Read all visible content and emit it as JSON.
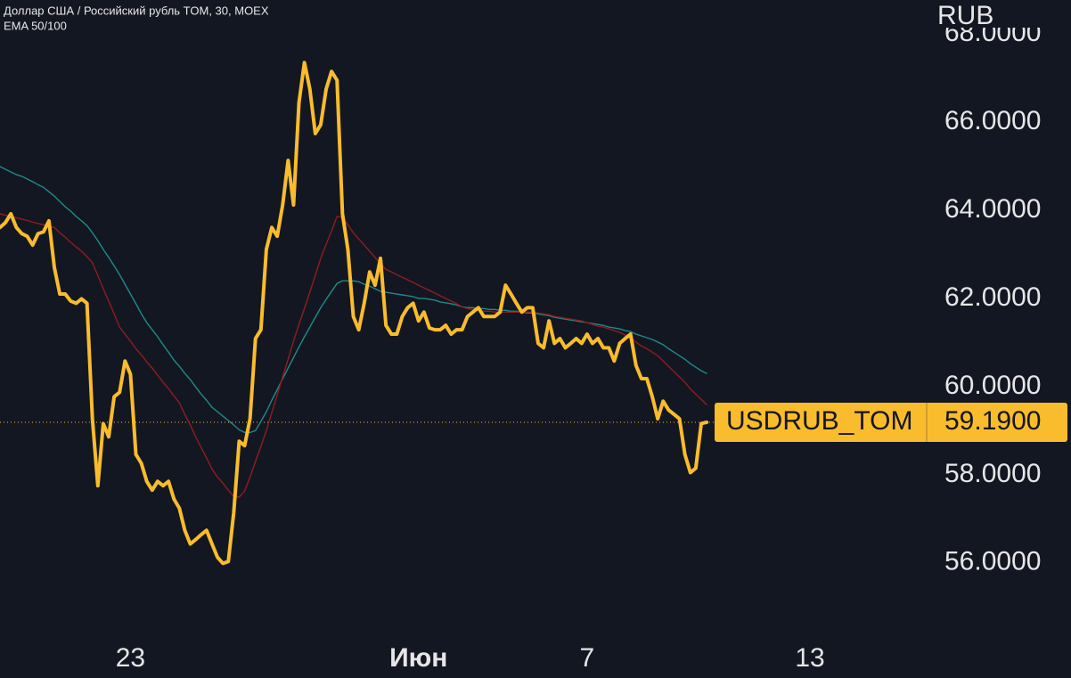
{
  "chart_data": {
    "type": "line",
    "title": "Доллар США / Российский рубль TOM, 30, MOEX",
    "subtitle": "EMA 50/100",
    "y_axis_label": "RUB",
    "categories": [
      null,
      null,
      null,
      null,
      null,
      null,
      null,
      null,
      null,
      null,
      null,
      null,
      null,
      null,
      null,
      null,
      null,
      null,
      null,
      null,
      null,
      null,
      null,
      null,
      "23",
      null,
      null,
      null,
      null,
      null,
      null,
      null,
      null,
      null,
      null,
      null,
      null,
      null,
      null,
      null,
      null,
      null,
      null,
      null,
      null,
      null,
      null,
      null,
      null,
      null,
      null,
      null,
      null,
      null,
      null,
      null,
      null,
      null,
      null,
      null,
      null,
      null,
      null,
      null,
      null,
      null,
      null,
      null,
      null,
      null,
      null,
      null,
      null,
      null,
      null,
      null,
      null,
      "Июн",
      null,
      null,
      null,
      null,
      null,
      null,
      null,
      null,
      null,
      null,
      null,
      null,
      null,
      null,
      null,
      null,
      null,
      null,
      null,
      null,
      null,
      null,
      null,
      null,
      null,
      null,
      null,
      null,
      null,
      null,
      "7",
      null,
      null,
      null,
      null,
      null,
      null,
      null,
      null,
      null,
      null,
      null,
      null,
      null,
      null,
      null,
      null,
      null,
      null,
      null,
      null,
      null,
      null,
      null,
      null,
      null,
      null,
      null,
      null,
      null,
      null,
      null,
      null,
      null,
      null,
      null,
      null,
      null,
      null,
      null,
      null,
      "13"
    ],
    "series": [
      {
        "color": "#1f8a8a",
        "values": [
          64.99,
          64.93,
          64.87,
          64.81,
          64.77,
          64.71,
          64.65,
          64.58,
          64.52,
          64.42,
          64.32,
          64.2,
          64.08,
          63.98,
          63.86,
          63.76,
          63.65,
          63.49,
          63.31,
          63.11,
          62.93,
          62.74,
          62.54,
          62.32,
          62.1,
          61.88,
          61.65,
          61.45,
          61.29,
          61.13,
          60.95,
          60.78,
          60.6,
          60.46,
          60.3,
          60.16,
          59.99,
          59.83,
          59.69,
          59.53,
          59.43,
          59.33,
          59.23,
          59.13,
          59.02,
          58.96,
          58.96,
          59.0,
          59.21,
          59.43,
          59.69,
          59.93,
          60.18,
          60.42,
          60.66,
          60.9,
          61.13,
          61.35,
          61.57,
          61.79,
          61.98,
          62.16,
          62.34,
          62.4,
          62.4,
          62.4,
          62.38,
          62.32,
          62.28,
          62.22,
          62.16,
          62.14,
          62.12,
          62.1,
          62.08,
          62.06,
          62.04,
          62.0,
          62.0,
          61.98,
          61.96,
          61.92,
          61.9,
          61.88,
          61.85,
          61.81,
          61.79,
          61.79,
          61.77,
          61.77,
          61.75,
          61.75,
          61.73,
          61.73,
          61.71,
          61.71,
          61.69,
          61.67,
          61.67,
          61.65,
          61.63,
          61.61,
          61.57,
          61.55,
          61.53,
          61.51,
          61.49,
          61.47,
          61.45,
          61.43,
          61.41,
          61.39,
          61.35,
          61.33,
          61.31,
          61.27,
          61.25,
          61.19,
          61.15,
          61.11,
          61.07,
          61.01,
          60.95,
          60.86,
          60.78,
          60.7,
          60.62,
          60.52,
          60.44,
          60.36,
          60.3,
          null,
          null,
          null,
          null,
          null,
          null,
          null,
          null,
          null,
          null,
          null,
          null,
          null,
          null,
          null,
          null,
          null,
          null,
          null
        ]
      },
      {
        "color": "#8f1d1d",
        "values": [
          63.92,
          63.89,
          63.86,
          63.83,
          63.8,
          63.77,
          63.73,
          63.7,
          63.67,
          63.64,
          63.61,
          63.49,
          63.39,
          63.27,
          63.17,
          63.07,
          62.95,
          62.81,
          62.52,
          62.22,
          61.94,
          61.65,
          61.35,
          61.19,
          61.03,
          60.86,
          60.72,
          60.56,
          60.42,
          60.26,
          60.1,
          59.95,
          59.79,
          59.63,
          59.37,
          59.13,
          58.86,
          58.62,
          58.38,
          58.13,
          57.95,
          57.81,
          57.65,
          57.51,
          57.49,
          57.63,
          57.95,
          58.3,
          58.64,
          59.0,
          59.41,
          59.81,
          60.22,
          60.62,
          61.03,
          61.41,
          61.77,
          62.14,
          62.52,
          62.91,
          63.23,
          63.53,
          63.86,
          63.84,
          63.67,
          63.49,
          63.35,
          63.21,
          63.07,
          62.93,
          62.79,
          62.66,
          62.6,
          62.54,
          62.48,
          62.42,
          62.36,
          62.3,
          62.24,
          62.18,
          62.12,
          62.06,
          62.0,
          61.94,
          61.88,
          61.81,
          61.77,
          61.75,
          61.73,
          61.71,
          61.71,
          61.69,
          61.69,
          61.69,
          61.69,
          61.69,
          61.69,
          61.69,
          61.69,
          61.67,
          61.65,
          61.63,
          61.59,
          61.57,
          61.55,
          61.53,
          61.51,
          61.49,
          61.45,
          61.41,
          61.37,
          61.35,
          61.31,
          61.27,
          61.23,
          61.17,
          61.09,
          61.01,
          60.92,
          60.86,
          60.78,
          60.7,
          60.58,
          60.46,
          60.34,
          60.22,
          60.1,
          59.95,
          59.83,
          59.71,
          59.59,
          null,
          null,
          null,
          null,
          null,
          null,
          null,
          null,
          null,
          null,
          null,
          null,
          null,
          null,
          null,
          null,
          null,
          null,
          null
        ]
      },
      {
        "name": "USDRUB_TOM",
        "color": "#f9bc2c",
        "values": [
          63.61,
          63.72,
          63.92,
          63.61,
          63.47,
          63.41,
          63.21,
          63.47,
          63.51,
          63.76,
          62.7,
          62.1,
          62.1,
          61.94,
          61.89,
          61.99,
          61.89,
          59.27,
          57.75,
          59.16,
          58.86,
          59.77,
          59.87,
          60.58,
          60.28,
          58.46,
          58.26,
          57.85,
          57.65,
          57.85,
          57.75,
          57.85,
          57.45,
          57.24,
          56.74,
          56.43,
          56.53,
          56.64,
          56.74,
          56.43,
          56.13,
          55.99,
          56.03,
          57.14,
          58.76,
          58.66,
          59.27,
          61.09,
          61.29,
          63.11,
          63.61,
          63.41,
          64.12,
          65.13,
          64.12,
          66.44,
          67.35,
          66.75,
          65.74,
          65.94,
          66.75,
          67.15,
          66.95,
          63.92,
          63.11,
          61.59,
          61.29,
          61.89,
          62.6,
          62.3,
          62.91,
          61.39,
          61.19,
          61.19,
          61.59,
          61.79,
          61.89,
          61.49,
          61.69,
          61.33,
          61.29,
          61.29,
          61.39,
          61.19,
          61.29,
          61.29,
          61.59,
          61.69,
          61.79,
          61.59,
          61.59,
          61.59,
          61.69,
          62.3,
          62.1,
          61.89,
          61.69,
          61.79,
          61.79,
          60.98,
          60.88,
          61.49,
          60.98,
          61.09,
          60.88,
          60.98,
          61.09,
          60.98,
          61.19,
          60.98,
          61.09,
          60.88,
          60.88,
          60.58,
          60.98,
          61.09,
          61.19,
          60.48,
          60.18,
          60.18,
          59.77,
          59.27,
          59.67,
          59.47,
          59.37,
          59.27,
          58.46,
          58.05,
          58.15,
          59.16,
          59.19,
          null,
          null,
          null,
          null,
          null,
          null,
          null,
          null,
          null,
          null,
          null,
          null,
          null,
          null,
          null,
          null,
          null,
          null,
          null
        ]
      }
    ],
    "last_price": {
      "value": 59.19,
      "label": "59.1900"
    },
    "ylim": [
      54.42,
      68.77
    ],
    "yticks": [
      {
        "value": 56,
        "label": "56.0000"
      },
      {
        "value": 58,
        "label": "58.0000"
      },
      {
        "value": 60,
        "label": "60.0000"
      },
      {
        "value": 62,
        "label": "62.0000"
      },
      {
        "value": 64,
        "label": "64.0000"
      },
      {
        "value": 66,
        "label": "66.0000"
      },
      {
        "value": 68,
        "label": "68.0000"
      }
    ],
    "grid": false
  }
}
